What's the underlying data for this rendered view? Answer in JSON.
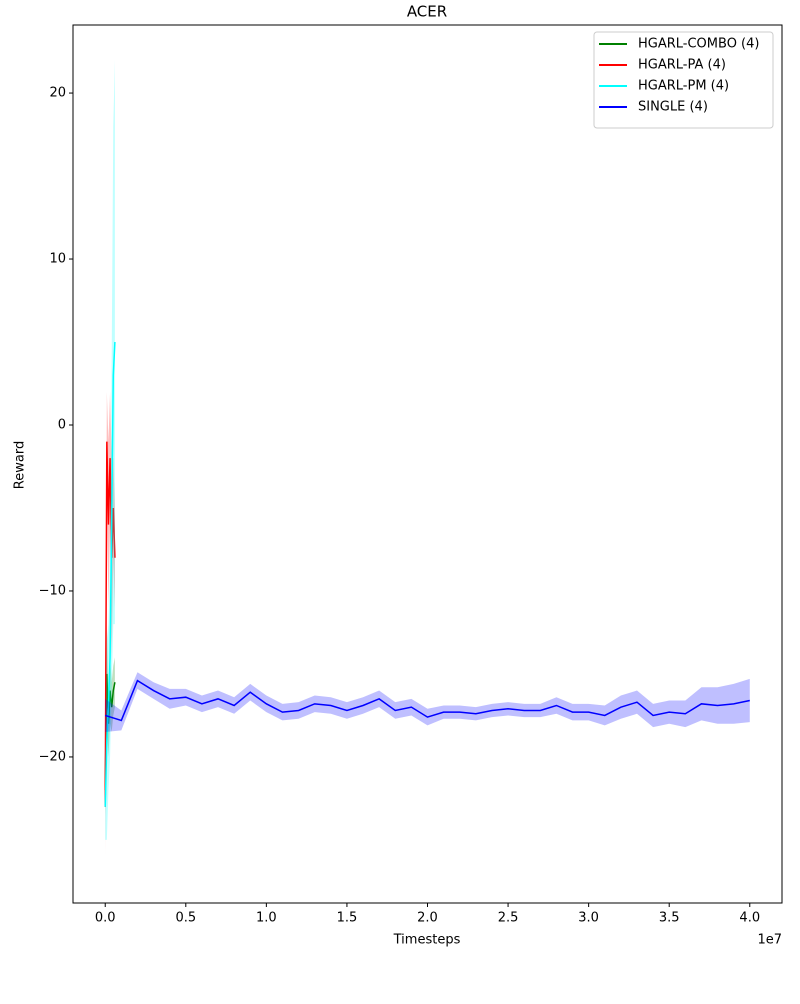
{
  "chart_data": {
    "type": "line",
    "title": "ACER",
    "x_label": "Timesteps",
    "y_label": "Reward",
    "x_offset_label": "1e7",
    "xlim": [
      -2000000,
      42000000
    ],
    "ylim": [
      -28.8,
      24.1
    ],
    "xticks": [
      {
        "value": 0,
        "label": "0.0"
      },
      {
        "value": 5000000,
        "label": "0.5"
      },
      {
        "value": 10000000,
        "label": "1.0"
      },
      {
        "value": 15000000,
        "label": "1.5"
      },
      {
        "value": 20000000,
        "label": "2.0"
      },
      {
        "value": 25000000,
        "label": "2.5"
      },
      {
        "value": 30000000,
        "label": "3.0"
      },
      {
        "value": 35000000,
        "label": "3.5"
      },
      {
        "value": 40000000,
        "label": "4.0"
      }
    ],
    "yticks": [
      {
        "value": -20,
        "label": "−20"
      },
      {
        "value": -10,
        "label": "−10"
      },
      0,
      10,
      20
    ],
    "grid": false,
    "legend": "upper right",
    "series": [
      {
        "name": "HGARL-COMBO (4)",
        "color": "#008000",
        "x": [
          0,
          100000,
          200000,
          300000,
          400000,
          500000,
          600000
        ],
        "values": [
          -22,
          -15,
          -18,
          -16,
          -17,
          -16,
          -15.5
        ],
        "spread": [
          1.5,
          3,
          2,
          2,
          1.5,
          1.5,
          1.5
        ]
      },
      {
        "name": "HGARL-PA (4)",
        "color": "#ff0000",
        "x": [
          0,
          100000,
          200000,
          300000,
          400000,
          500000,
          600000
        ],
        "values": [
          -23,
          -1,
          -6,
          -2,
          -8,
          -5,
          -8
        ],
        "spread": [
          3,
          3,
          5,
          4,
          6,
          3,
          3
        ]
      },
      {
        "name": "HGARL-PM (4)",
        "color": "#00ffff",
        "x": [
          0,
          100000,
          200000,
          300000,
          400000,
          500000,
          600000
        ],
        "values": [
          -23,
          -19,
          -17,
          -14,
          -6,
          3,
          5
        ],
        "spread": [
          2,
          6,
          5,
          6,
          10,
          15,
          17
        ]
      },
      {
        "name": "SINGLE (4)",
        "color": "#0000ff",
        "x": [
          0,
          1000000,
          2000000,
          3000000,
          4000000,
          5000000,
          6000000,
          7000000,
          8000000,
          9000000,
          10000000,
          11000000,
          12000000,
          13000000,
          14000000,
          15000000,
          16000000,
          17000000,
          18000000,
          19000000,
          20000000,
          21000000,
          22000000,
          23000000,
          24000000,
          25000000,
          26000000,
          27000000,
          28000000,
          29000000,
          30000000,
          31000000,
          32000000,
          33000000,
          34000000,
          35000000,
          36000000,
          37000000,
          38000000,
          39000000,
          40000000
        ],
        "values": [
          -17.5,
          -17.8,
          -15.4,
          -16,
          -16.5,
          -16.4,
          -16.8,
          -16.5,
          -16.9,
          -16.1,
          -16.8,
          -17.3,
          -17.2,
          -16.8,
          -16.9,
          -17.2,
          -16.9,
          -16.5,
          -17.2,
          -17,
          -17.6,
          -17.3,
          -17.3,
          -17.4,
          -17.2,
          -17.1,
          -17.2,
          -17.2,
          -16.9,
          -17.3,
          -17.3,
          -17.5,
          -17,
          -16.7,
          -17.5,
          -17.3,
          -17.4,
          -16.8,
          -16.9,
          -16.8,
          -16.6
        ],
        "spread": [
          1,
          0.6,
          0.5,
          0.5,
          0.6,
          0.5,
          0.5,
          0.5,
          0.5,
          0.5,
          0.5,
          0.5,
          0.5,
          0.5,
          0.5,
          0.5,
          0.5,
          0.5,
          0.5,
          0.5,
          0.5,
          0.4,
          0.4,
          0.4,
          0.4,
          0.4,
          0.4,
          0.4,
          0.5,
          0.5,
          0.5,
          0.6,
          0.7,
          0.7,
          0.7,
          0.7,
          0.8,
          1,
          1.1,
          1.2,
          1.3
        ]
      }
    ]
  }
}
